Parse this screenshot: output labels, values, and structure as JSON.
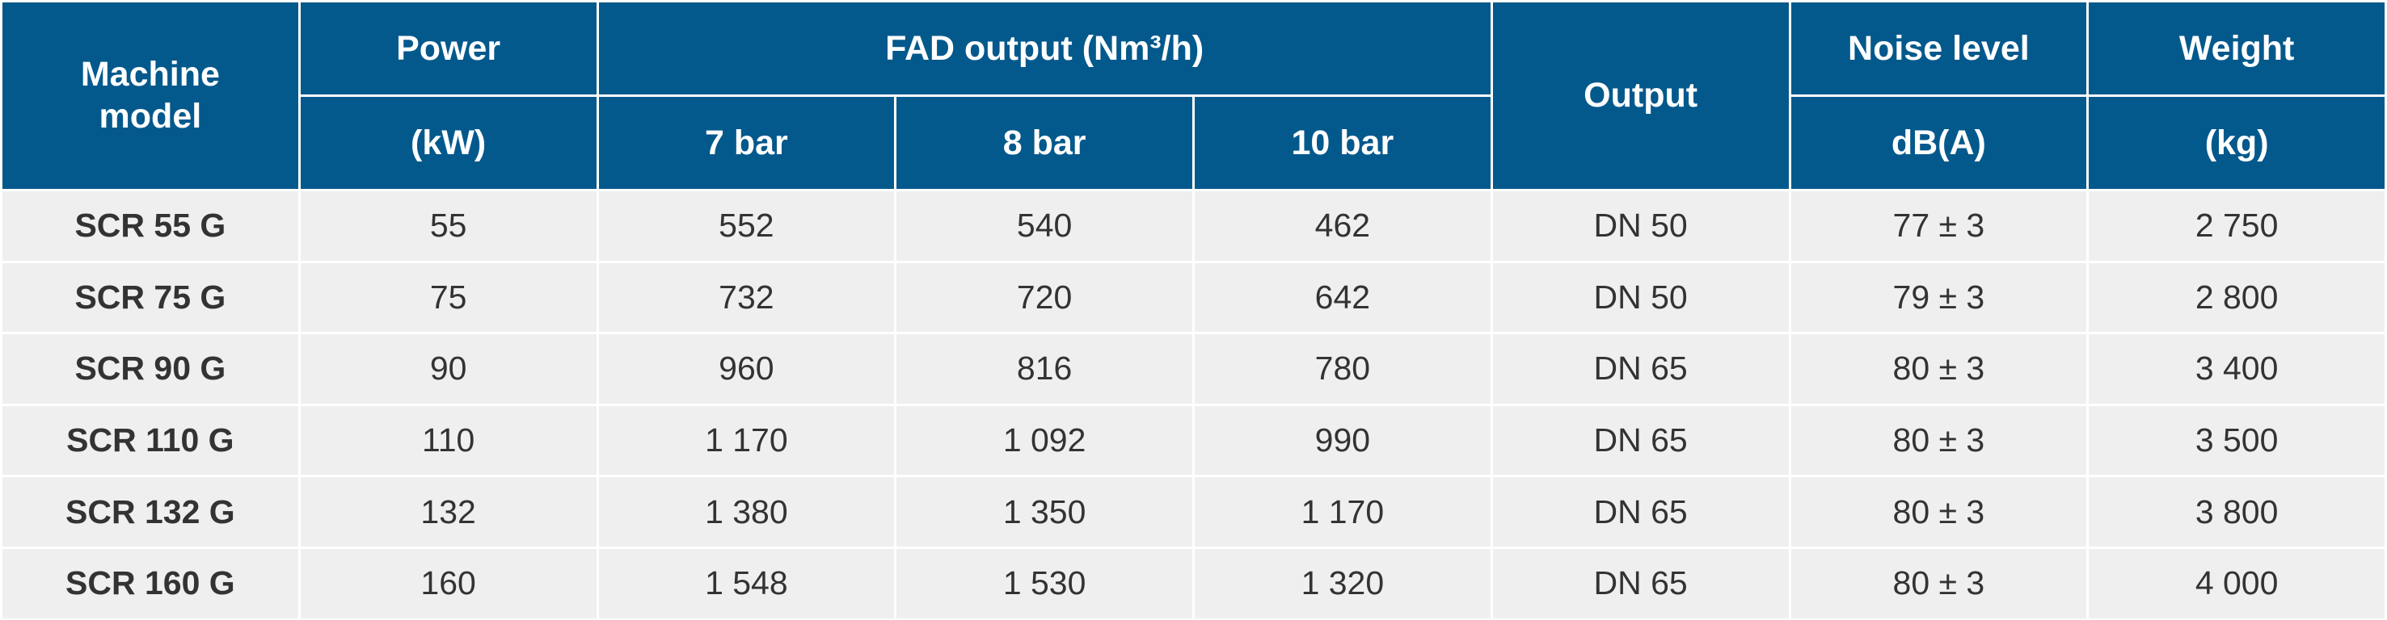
{
  "table": {
    "header": {
      "model": "Machine model",
      "power": "Power",
      "power_unit": "(kW)",
      "fad": "FAD output (Nm³/h)",
      "bars": [
        "7 bar",
        "8 bar",
        "10 bar"
      ],
      "output": "Output",
      "noise": "Noise level",
      "noise_unit": "dB(A)",
      "weight": "Weight",
      "weight_unit": "(kg)"
    },
    "rows": [
      [
        "SCR 55 G",
        "55",
        "552",
        "540",
        "462",
        "DN 50",
        "77 ± 3",
        "2 750"
      ],
      [
        "SCR 75 G",
        "75",
        "732",
        "720",
        "642",
        "DN 50",
        "79 ± 3",
        "2 800"
      ],
      [
        "SCR 90 G",
        "90",
        "960",
        "816",
        "780",
        "DN 65",
        "80 ± 3",
        "3 400"
      ],
      [
        "SCR 110 G",
        "110",
        "1 170",
        "1 092",
        "990",
        "DN 65",
        "80 ± 3",
        "3 500"
      ],
      [
        "SCR 132 G",
        "132",
        "1 380",
        "1 350",
        "1 170",
        "DN 65",
        "80 ± 3",
        "3 800"
      ],
      [
        "SCR 160 G",
        "160",
        "1 548",
        "1 530",
        "1 320",
        "DN 65",
        "80 ± 3",
        "4 000"
      ]
    ]
  }
}
